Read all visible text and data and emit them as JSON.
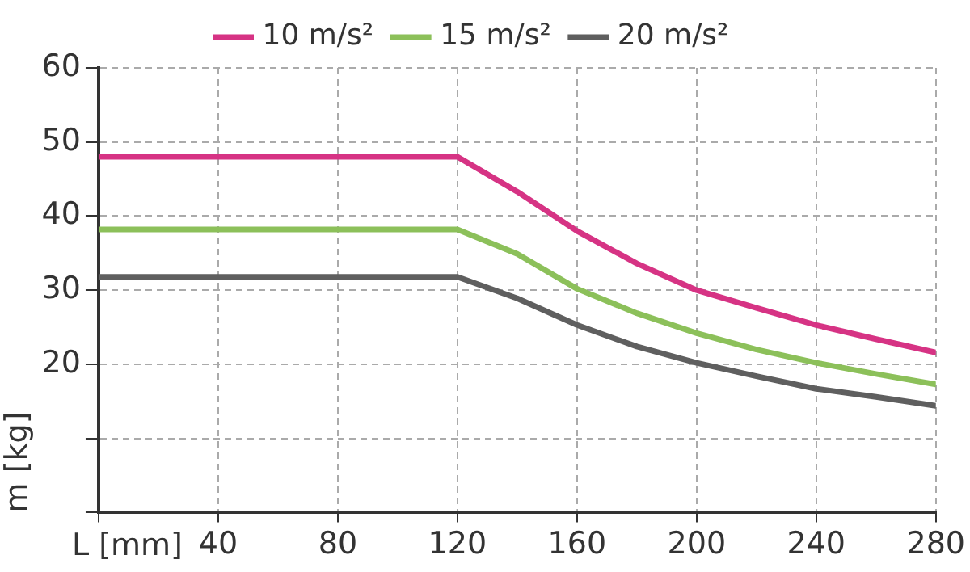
{
  "chart_data": {
    "type": "line",
    "xlabel": "L [mm]",
    "ylabel": "m [kg]",
    "x": [
      0,
      120,
      140,
      160,
      180,
      200,
      220,
      240,
      260,
      280
    ],
    "series": [
      {
        "name": "10 m/s²",
        "color": "#d63384",
        "values": [
          48,
          48,
          43.3,
          38,
          33.6,
          30,
          27.6,
          25.3,
          23.4,
          21.6
        ]
      },
      {
        "name": "15 m/s²",
        "color": "#8cc05a",
        "values": [
          38.2,
          38.2,
          34.9,
          30.2,
          26.9,
          24.2,
          22,
          20.2,
          18.7,
          17.3
        ]
      },
      {
        "name": "20 m/s²",
        "color": "#5f5f5f",
        "values": [
          31.8,
          31.8,
          28.9,
          25.3,
          22.4,
          20.2,
          18.4,
          16.7,
          15.6,
          14.4
        ]
      }
    ],
    "xlim": [
      0,
      280
    ],
    "xticks": [
      {
        "value": 0,
        "label": null
      },
      40,
      80,
      120,
      160,
      200,
      240,
      280
    ],
    "ylim": [
      0,
      60
    ],
    "yticks": [
      {
        "value": 0,
        "label": null
      },
      {
        "value": 10,
        "label": null
      },
      20,
      30,
      40,
      50,
      60
    ],
    "grid": true,
    "legend": "top",
    "marker": "none",
    "line_style": "solid"
  }
}
